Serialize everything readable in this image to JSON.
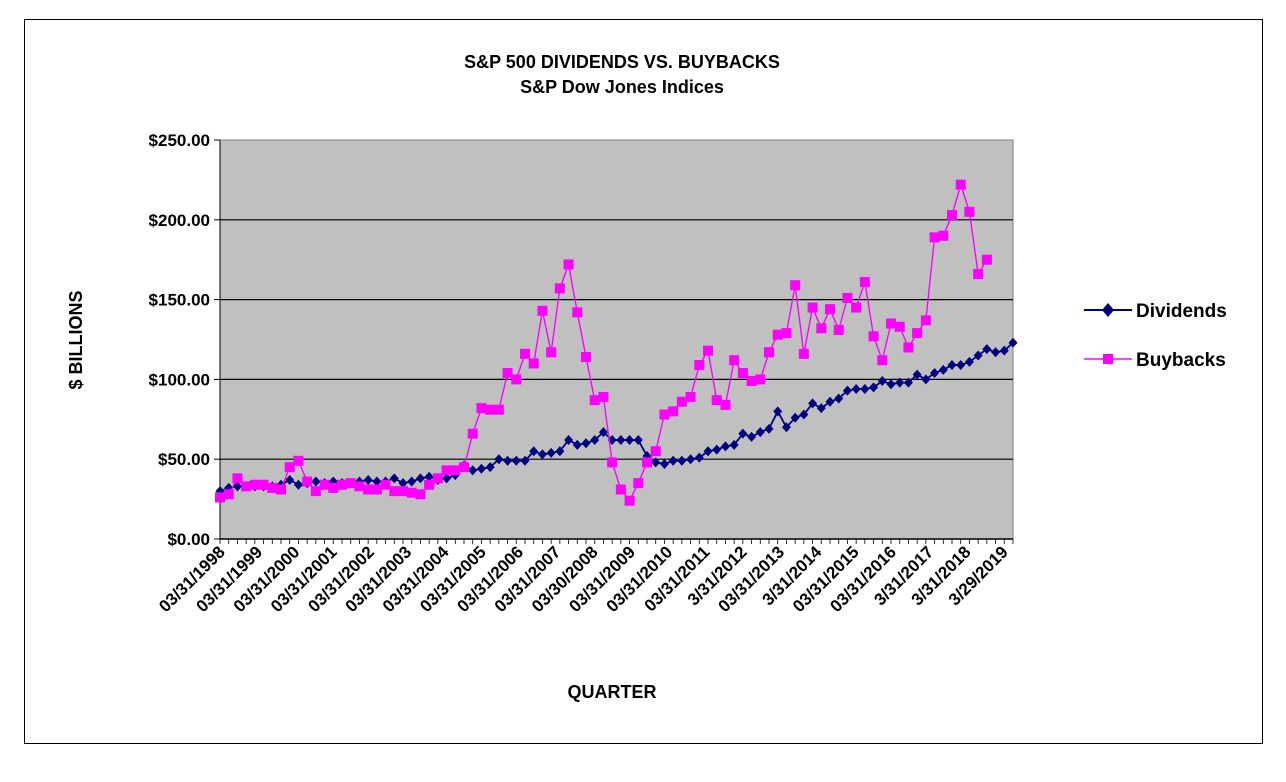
{
  "chart_data": {
    "type": "line",
    "title": "S&P 500 DIVIDENDS VS. BUYBACKS",
    "subtitle": "S&P Dow Jones Indices",
    "xlabel": "QUARTER",
    "ylabel": "$ BILLIONS",
    "ylim": [
      0,
      250
    ],
    "yticks": [
      "$0.00",
      "$50.00",
      "$100.00",
      "$150.00",
      "$200.00",
      "$250.00"
    ],
    "ytick_values": [
      0,
      50,
      100,
      150,
      200,
      250
    ],
    "x_tick_labels": [
      "03/31/1998",
      "03/31/1999",
      "03/31/2000",
      "03/31/2001",
      "03/31/2002",
      "03/31/2003",
      "03/31/2004",
      "03/31/2005",
      "03/31/2006",
      "03/31/2007",
      "03/30/2008",
      "03/31/2009",
      "03/31/2010",
      "03/31/2011",
      "3/31/2012",
      "03/31/2013",
      "3/31/2014",
      "03/31/2015",
      "03/31/2016",
      "3/31/2017",
      "3/31/2018",
      "3/29/2019"
    ],
    "grid": true,
    "legend_position": "right",
    "plot_background": "#c0c0c0",
    "series": [
      {
        "name": "Dividends",
        "color": "#000080",
        "marker": "diamond",
        "values": [
          30,
          32,
          33,
          33,
          33,
          33,
          33,
          34,
          37,
          34,
          35,
          36,
          35,
          36,
          35,
          35,
          36,
          37,
          36,
          36,
          38,
          35,
          36,
          38,
          39,
          37,
          38,
          40,
          46,
          43,
          44,
          45,
          50,
          49,
          49,
          49,
          55,
          53,
          54,
          55,
          62,
          59,
          60,
          62,
          67,
          62,
          62,
          62,
          62,
          52,
          48,
          47,
          49,
          49,
          50,
          51,
          55,
          56,
          58,
          59,
          66,
          64,
          67,
          69,
          80,
          70,
          76,
          78,
          85,
          82,
          86,
          88,
          93,
          94,
          94,
          95,
          99,
          97,
          98,
          98,
          103,
          100,
          104,
          106,
          109,
          109,
          111,
          115,
          119,
          117,
          118,
          123
        ]
      },
      {
        "name": "Buybacks",
        "color": "#ff00ff",
        "marker": "square",
        "values": [
          26,
          28,
          38,
          33,
          34,
          34,
          32,
          31,
          45,
          49,
          36,
          30,
          34,
          32,
          34,
          35,
          33,
          31,
          31,
          34,
          30,
          30,
          29,
          28,
          34,
          38,
          43,
          43,
          45,
          66,
          82,
          81,
          81,
          104,
          100,
          116,
          110,
          143,
          117,
          157,
          172,
          142,
          114,
          87,
          89,
          48,
          31,
          24,
          35,
          48,
          55,
          78,
          80,
          86,
          89,
          109,
          118,
          87,
          84,
          112,
          104,
          99,
          100,
          117,
          128,
          129,
          159,
          116,
          145,
          132,
          144,
          131,
          151,
          145,
          161,
          127,
          112,
          135,
          133,
          120,
          129,
          137,
          189,
          190,
          203,
          222,
          205,
          166,
          175
        ]
      }
    ]
  }
}
